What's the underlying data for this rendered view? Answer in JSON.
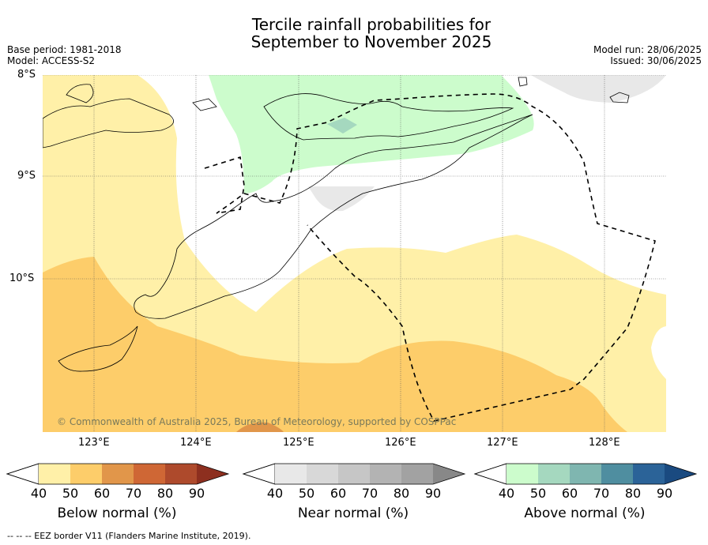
{
  "header": {
    "title_line1": "Tercile rainfall probabilities for",
    "title_line2": "September to November 2025",
    "base_period": "Base period: 1981-2018",
    "model": "Model: ACCESS-S2",
    "model_run": "Model run: 28/06/2025",
    "issued": "Issued: 30/06/2025"
  },
  "map": {
    "lat_labels": [
      "8°S",
      "9°S",
      "10°S"
    ],
    "lon_labels": [
      "123°E",
      "124°E",
      "125°E",
      "126°E",
      "127°E",
      "128°E"
    ],
    "copyright": "© Commonwealth of Australia 2025, Bureau of Meteorology, supported by COSPPac"
  },
  "legends": [
    {
      "label": "Below normal (%)",
      "ticks": [
        "40",
        "50",
        "60",
        "70",
        "80",
        "90"
      ],
      "colors": [
        "#fff0a8",
        "#fdcd6a",
        "#e1964a",
        "#cf6735",
        "#ae4a2c",
        "#8d2f1f"
      ]
    },
    {
      "label": "Near normal (%)",
      "ticks": [
        "40",
        "50",
        "60",
        "70",
        "80",
        "90"
      ],
      "colors": [
        "#e8e8e8",
        "#d8d8d8",
        "#c6c6c6",
        "#b3b3b3",
        "#a2a2a2",
        "#888888"
      ]
    },
    {
      "label": "Above normal (%)",
      "ticks": [
        "40",
        "50",
        "60",
        "70",
        "80",
        "90"
      ],
      "colors": [
        "#ccfccc",
        "#a5d8bf",
        "#7fb6b0",
        "#4f8ea0",
        "#2b6398",
        "#1a4a80"
      ]
    }
  ],
  "footer": {
    "eez_note": "--  --  -- EEZ border V11 (Flanders Marine Institute, 2019)."
  }
}
